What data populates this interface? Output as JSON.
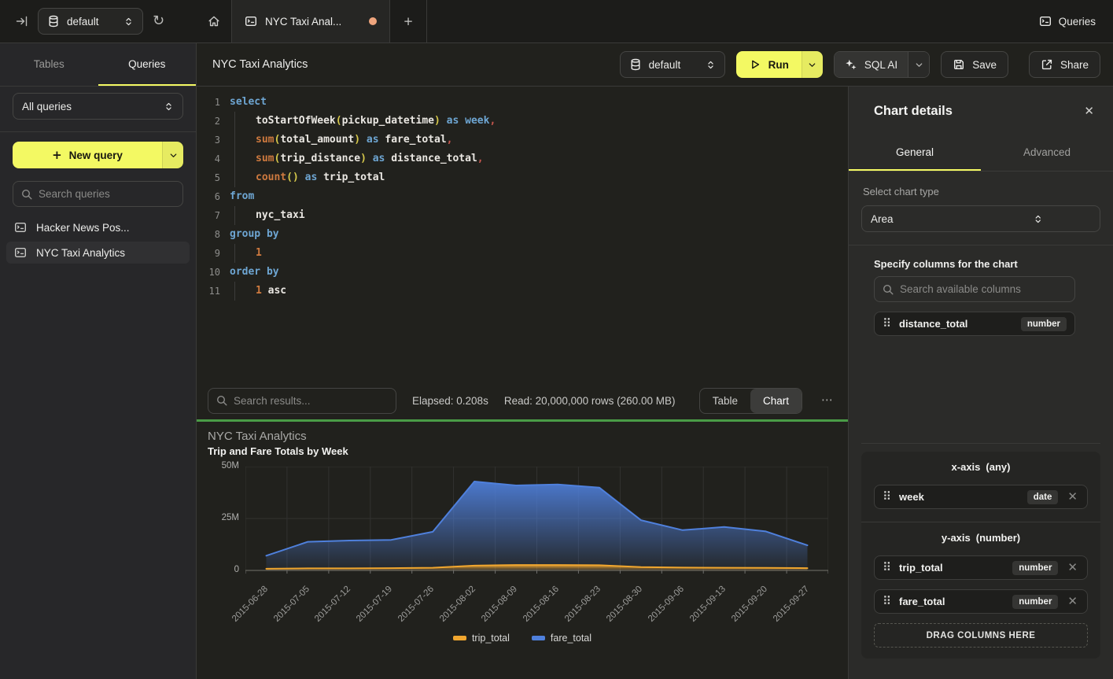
{
  "colors": {
    "accent_yellow": "#f3f963",
    "success_green": "#4a9c47",
    "unsaved_dot_orange": "#efa57d",
    "series_trip_total": "#f0a62f",
    "series_fare_total": "#4f80dc",
    "editor_keyword": "#6ea6d3",
    "editor_function": "#cf7a3f",
    "editor_paren": "#d6c84b"
  },
  "icons": {
    "collapse": "svg:collapse",
    "database": "svg:database",
    "refresh": "↻",
    "home": "svg:home",
    "query": "svg:query",
    "plus": "+",
    "search": "svg:search",
    "updown": "svg:updown",
    "chevdown": "svg:chevdown",
    "play": "svg:play",
    "sparkle": "svg:sparkle",
    "save": "svg:save",
    "share": "svg:share",
    "close": "✕",
    "drag": "⠿",
    "more": "⋯"
  },
  "topbar": {
    "database_selector": {
      "value": "default"
    },
    "tab": {
      "title": "NYC Taxi Anal...",
      "unsaved": true
    },
    "queries_button": {
      "label": "Queries"
    }
  },
  "sidebar": {
    "tabs": [
      {
        "label": "Tables",
        "active": false
      },
      {
        "label": "Queries",
        "active": true
      }
    ],
    "filter_value": "All queries",
    "new_query_label": "New query",
    "search_placeholder": "Search queries",
    "items": [
      {
        "label": "Hacker News Pos...",
        "active": false
      },
      {
        "label": "NYC Taxi Analytics",
        "active": true
      }
    ]
  },
  "header": {
    "title": "NYC Taxi Analytics",
    "database": "default",
    "run_label": "Run",
    "sql_ai_label": "SQL AI",
    "save_label": "Save",
    "share_label": "Share"
  },
  "editor": {
    "lines": [
      {
        "n": "1",
        "i": false,
        "t": [
          [
            "kw",
            "select"
          ]
        ]
      },
      {
        "n": "2",
        "i": true,
        "t": [
          [
            "id",
            "toStartOfWeek"
          ],
          [
            "par",
            "("
          ],
          [
            "id",
            "pickup_datetime"
          ],
          [
            "par",
            ")"
          ],
          [
            "pl",
            " "
          ],
          [
            "kw",
            "as"
          ],
          [
            "pl",
            " "
          ],
          [
            "kw",
            "week"
          ],
          [
            "com",
            ","
          ]
        ]
      },
      {
        "n": "3",
        "i": true,
        "t": [
          [
            "fn",
            "sum"
          ],
          [
            "par",
            "("
          ],
          [
            "id",
            "total_amount"
          ],
          [
            "par",
            ")"
          ],
          [
            "pl",
            " "
          ],
          [
            "kw",
            "as"
          ],
          [
            "pl",
            " "
          ],
          [
            "id",
            "fare_total"
          ],
          [
            "com",
            ","
          ]
        ]
      },
      {
        "n": "4",
        "i": true,
        "t": [
          [
            "fn",
            "sum"
          ],
          [
            "par",
            "("
          ],
          [
            "id",
            "trip_distance"
          ],
          [
            "par",
            ")"
          ],
          [
            "pl",
            " "
          ],
          [
            "kw",
            "as"
          ],
          [
            "pl",
            " "
          ],
          [
            "id",
            "distance_total"
          ],
          [
            "com",
            ","
          ]
        ]
      },
      {
        "n": "5",
        "i": true,
        "t": [
          [
            "fn",
            "count"
          ],
          [
            "par",
            "()"
          ],
          [
            "pl",
            " "
          ],
          [
            "kw",
            "as"
          ],
          [
            "pl",
            " "
          ],
          [
            "id",
            "trip_total"
          ]
        ]
      },
      {
        "n": "6",
        "i": false,
        "t": [
          [
            "kw",
            "from"
          ]
        ]
      },
      {
        "n": "7",
        "i": true,
        "t": [
          [
            "id",
            "nyc_taxi"
          ]
        ]
      },
      {
        "n": "8",
        "i": false,
        "t": [
          [
            "kw",
            "group by"
          ]
        ]
      },
      {
        "n": "9",
        "i": true,
        "t": [
          [
            "num",
            "1"
          ]
        ]
      },
      {
        "n": "10",
        "i": false,
        "t": [
          [
            "kw",
            "order by"
          ]
        ]
      },
      {
        "n": "11",
        "i": true,
        "t": [
          [
            "num",
            "1"
          ],
          [
            "pl",
            " "
          ],
          [
            "id",
            "asc"
          ]
        ]
      }
    ]
  },
  "results": {
    "search_placeholder": "Search results...",
    "elapsed": "Elapsed: 0.208s",
    "read": "Read: 20,000,000 rows (260.00 MB)",
    "view_tabs": [
      "Table",
      "Chart"
    ],
    "active_view": "Chart"
  },
  "chart_data": {
    "type": "area",
    "title": "NYC Taxi Analytics",
    "subtitle": "Trip and Fare Totals by Week",
    "x": [
      "2015-06-28",
      "2015-07-05",
      "2015-07-12",
      "2015-07-19",
      "2015-07-26",
      "2015-08-02",
      "2015-08-09",
      "2015-08-16",
      "2015-08-23",
      "2015-08-30",
      "2015-09-06",
      "2015-09-13",
      "2015-09-20",
      "2015-09-27"
    ],
    "series": [
      {
        "name": "trip_total",
        "color": "#f0a62f",
        "values": [
          800000,
          1000000,
          1000000,
          1100000,
          1300000,
          2300000,
          2600000,
          2600000,
          2500000,
          1600000,
          1350000,
          1300000,
          1200000,
          1100000
        ]
      },
      {
        "name": "fare_total",
        "color": "#4f80dc",
        "values": [
          7100000,
          13800000,
          14400000,
          14700000,
          18600000,
          42800000,
          40900000,
          41400000,
          39900000,
          24200000,
          19400000,
          20900000,
          18800000,
          12100000
        ]
      }
    ],
    "ylim": [
      0,
      50000000
    ],
    "yticks": [
      {
        "value": 0,
        "label": "0"
      },
      {
        "value": 25000000,
        "label": "25M"
      },
      {
        "value": 50000000,
        "label": "50M"
      }
    ],
    "grid": true,
    "legend_position": "bottom"
  },
  "chart_panel": {
    "title": "Chart details",
    "tabs": [
      {
        "label": "General",
        "active": true
      },
      {
        "label": "Advanced",
        "active": false
      }
    ],
    "chart_type_label": "Select chart type",
    "chart_type_value": "Area",
    "columns_label": "Specify columns for the chart",
    "columns_search_placeholder": "Search available columns",
    "available_columns": [
      {
        "name": "distance_total",
        "type": "number"
      }
    ],
    "x_axis": {
      "title": "x-axis",
      "hint": "(any)",
      "columns": [
        {
          "name": "week",
          "type": "date"
        }
      ]
    },
    "y_axis": {
      "title": "y-axis",
      "hint": "(number)",
      "columns": [
        {
          "name": "trip_total",
          "type": "number"
        },
        {
          "name": "fare_total",
          "type": "number"
        }
      ]
    },
    "drop_zone_label": "DRAG COLUMNS HERE"
  }
}
